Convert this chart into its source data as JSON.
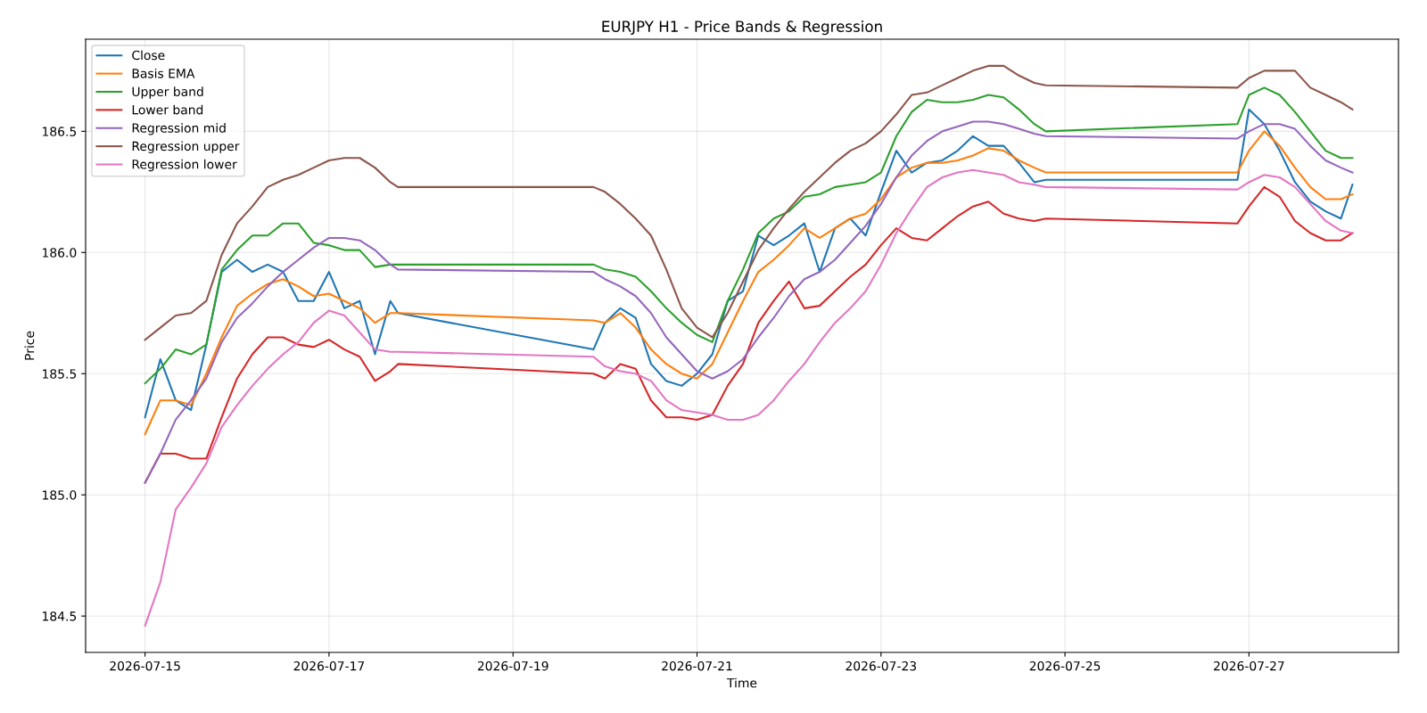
{
  "chart_data": {
    "type": "line",
    "title": "EURJPY H1 - Price Bands & Regression",
    "xlabel": "Time",
    "ylabel": "Price",
    "x": [
      "2026-07-15T00:00",
      "2026-07-15T04:00",
      "2026-07-15T08:00",
      "2026-07-15T12:00",
      "2026-07-15T16:00",
      "2026-07-15T20:00",
      "2026-07-16T00:00",
      "2026-07-16T04:00",
      "2026-07-16T08:00",
      "2026-07-16T12:00",
      "2026-07-16T16:00",
      "2026-07-16T20:00",
      "2026-07-17T00:00",
      "2026-07-17T04:00",
      "2026-07-17T08:00",
      "2026-07-17T12:00",
      "2026-07-17T16:00",
      "2026-07-17T18:00",
      "2026-07-19T21:00",
      "2026-07-20T00:00",
      "2026-07-20T04:00",
      "2026-07-20T08:00",
      "2026-07-20T12:00",
      "2026-07-20T16:00",
      "2026-07-20T20:00",
      "2026-07-21T00:00",
      "2026-07-21T04:00",
      "2026-07-21T08:00",
      "2026-07-21T12:00",
      "2026-07-21T16:00",
      "2026-07-21T20:00",
      "2026-07-22T00:00",
      "2026-07-22T04:00",
      "2026-07-22T08:00",
      "2026-07-22T12:00",
      "2026-07-22T16:00",
      "2026-07-22T20:00",
      "2026-07-23T00:00",
      "2026-07-23T04:00",
      "2026-07-23T08:00",
      "2026-07-23T12:00",
      "2026-07-23T16:00",
      "2026-07-23T20:00",
      "2026-07-24T00:00",
      "2026-07-24T04:00",
      "2026-07-24T08:00",
      "2026-07-24T12:00",
      "2026-07-24T16:00",
      "2026-07-24T19:00",
      "2026-07-26T21:00",
      "2026-07-27T00:00",
      "2026-07-27T04:00",
      "2026-07-27T08:00",
      "2026-07-27T12:00",
      "2026-07-27T16:00",
      "2026-07-27T20:00",
      "2026-07-28T00:00",
      "2026-07-28T03:00"
    ],
    "series": [
      {
        "name": "Close",
        "color": "#1f77b4",
        "values": [
          185.32,
          185.56,
          185.39,
          185.35,
          185.62,
          185.92,
          185.97,
          185.92,
          185.95,
          185.92,
          185.8,
          185.8,
          185.92,
          185.77,
          185.8,
          185.58,
          185.8,
          185.75,
          185.6,
          185.71,
          185.77,
          185.73,
          185.54,
          185.47,
          185.45,
          185.5,
          185.58,
          185.8,
          185.84,
          186.07,
          186.03,
          186.07,
          186.12,
          185.92,
          186.1,
          186.14,
          186.07,
          186.25,
          186.42,
          186.33,
          186.37,
          186.38,
          186.42,
          186.48,
          186.44,
          186.44,
          186.37,
          186.29,
          186.3,
          186.3,
          186.59,
          186.53,
          186.42,
          186.29,
          186.21,
          186.17,
          186.14,
          186.28
        ]
      },
      {
        "name": "Basis EMA",
        "color": "#ff7f0e",
        "values": [
          185.25,
          185.39,
          185.39,
          185.37,
          185.5,
          185.65,
          185.78,
          185.83,
          185.87,
          185.89,
          185.86,
          185.82,
          185.83,
          185.8,
          185.77,
          185.71,
          185.75,
          185.75,
          185.72,
          185.71,
          185.75,
          185.69,
          185.6,
          185.54,
          185.5,
          185.48,
          185.54,
          185.67,
          185.8,
          185.92,
          185.97,
          186.03,
          186.1,
          186.06,
          186.1,
          186.14,
          186.16,
          186.22,
          186.31,
          186.35,
          186.37,
          186.37,
          186.38,
          186.4,
          186.43,
          186.42,
          186.38,
          186.35,
          186.33,
          186.33,
          186.42,
          186.5,
          186.44,
          186.35,
          186.27,
          186.22,
          186.22,
          186.24
        ]
      },
      {
        "name": "Upper band",
        "color": "#2ca02c",
        "values": [
          185.46,
          185.52,
          185.6,
          185.58,
          185.62,
          185.93,
          186.01,
          186.07,
          186.07,
          186.12,
          186.12,
          186.04,
          186.03,
          186.01,
          186.01,
          185.94,
          185.95,
          185.95,
          185.95,
          185.93,
          185.92,
          185.9,
          185.84,
          185.77,
          185.71,
          185.66,
          185.63,
          185.8,
          185.93,
          186.08,
          186.14,
          186.17,
          186.23,
          186.24,
          186.27,
          186.28,
          186.29,
          186.33,
          186.48,
          186.58,
          186.63,
          186.62,
          186.62,
          186.63,
          186.65,
          186.64,
          186.59,
          186.53,
          186.5,
          186.53,
          186.65,
          186.68,
          186.65,
          186.58,
          186.5,
          186.42,
          186.39,
          186.39
        ]
      },
      {
        "name": "Lower band",
        "color": "#d62728",
        "values": [
          185.05,
          185.17,
          185.17,
          185.15,
          185.15,
          185.32,
          185.48,
          185.58,
          185.65,
          185.65,
          185.62,
          185.61,
          185.64,
          185.6,
          185.57,
          185.47,
          185.51,
          185.54,
          185.5,
          185.48,
          185.54,
          185.52,
          185.39,
          185.32,
          185.32,
          185.31,
          185.33,
          185.45,
          185.54,
          185.71,
          185.8,
          185.88,
          185.77,
          185.78,
          185.84,
          185.9,
          185.95,
          186.03,
          186.1,
          186.06,
          186.05,
          186.1,
          186.15,
          186.19,
          186.21,
          186.16,
          186.14,
          186.13,
          186.14,
          186.12,
          186.19,
          186.27,
          186.23,
          186.13,
          186.08,
          186.05,
          186.05,
          186.08
        ]
      },
      {
        "name": "Regression mid",
        "color": "#9467bd",
        "values": [
          185.05,
          185.17,
          185.31,
          185.39,
          185.48,
          185.63,
          185.73,
          185.79,
          185.86,
          185.92,
          185.97,
          186.02,
          186.06,
          186.06,
          186.05,
          186.01,
          185.95,
          185.93,
          185.92,
          185.89,
          185.86,
          185.82,
          185.75,
          185.65,
          185.58,
          185.51,
          185.48,
          185.51,
          185.56,
          185.65,
          185.73,
          185.82,
          185.89,
          185.92,
          185.97,
          186.04,
          186.11,
          186.2,
          186.31,
          186.4,
          186.46,
          186.5,
          186.52,
          186.54,
          186.54,
          186.53,
          186.51,
          186.49,
          186.48,
          186.47,
          186.5,
          186.53,
          186.53,
          186.51,
          186.44,
          186.38,
          186.35,
          186.33
        ]
      },
      {
        "name": "Regression upper",
        "color": "#8c564b",
        "values": [
          185.64,
          185.69,
          185.74,
          185.75,
          185.8,
          185.99,
          186.12,
          186.19,
          186.27,
          186.3,
          186.32,
          186.35,
          186.38,
          186.39,
          186.39,
          186.35,
          186.29,
          186.27,
          186.27,
          186.25,
          186.2,
          186.14,
          186.07,
          185.93,
          185.77,
          185.69,
          185.65,
          185.75,
          185.88,
          186.01,
          186.1,
          186.18,
          186.25,
          186.31,
          186.37,
          186.42,
          186.45,
          186.5,
          186.57,
          186.65,
          186.66,
          186.69,
          186.72,
          186.75,
          186.77,
          186.77,
          186.73,
          186.7,
          186.69,
          186.68,
          186.72,
          186.75,
          186.75,
          186.75,
          186.68,
          186.65,
          186.62,
          186.59
        ]
      },
      {
        "name": "Regression lower",
        "color": "#e377c2",
        "values": [
          184.46,
          184.64,
          184.94,
          185.03,
          185.13,
          185.28,
          185.37,
          185.45,
          185.52,
          185.58,
          185.63,
          185.71,
          185.76,
          185.74,
          185.67,
          185.6,
          185.59,
          185.59,
          185.57,
          185.53,
          185.51,
          185.5,
          185.47,
          185.39,
          185.35,
          185.34,
          185.33,
          185.31,
          185.31,
          185.33,
          185.39,
          185.47,
          185.54,
          185.63,
          185.71,
          185.77,
          185.84,
          185.95,
          186.08,
          186.18,
          186.27,
          186.31,
          186.33,
          186.34,
          186.33,
          186.32,
          186.29,
          186.28,
          186.27,
          186.26,
          186.29,
          186.32,
          186.31,
          186.27,
          186.2,
          186.13,
          186.09,
          186.08
        ]
      }
    ],
    "xlim": [
      "2026-07-14T08:30",
      "2026-07-28T15:00"
    ],
    "xticks": [
      "2026-07-15",
      "2026-07-17",
      "2026-07-19",
      "2026-07-21",
      "2026-07-23",
      "2026-07-25",
      "2026-07-27"
    ],
    "ylim": [
      184.35,
      186.88
    ],
    "yticks": [
      {
        "value": 184.5,
        "label": "184.5"
      },
      {
        "value": 185,
        "label": "185.0"
      },
      {
        "value": 185.5,
        "label": "185.5"
      },
      {
        "value": 186,
        "label": "186.0"
      },
      {
        "value": 186.5,
        "label": "186.5"
      }
    ],
    "grid": true,
    "legend": "upper left",
    "line_style": "solid",
    "marker": "none"
  }
}
